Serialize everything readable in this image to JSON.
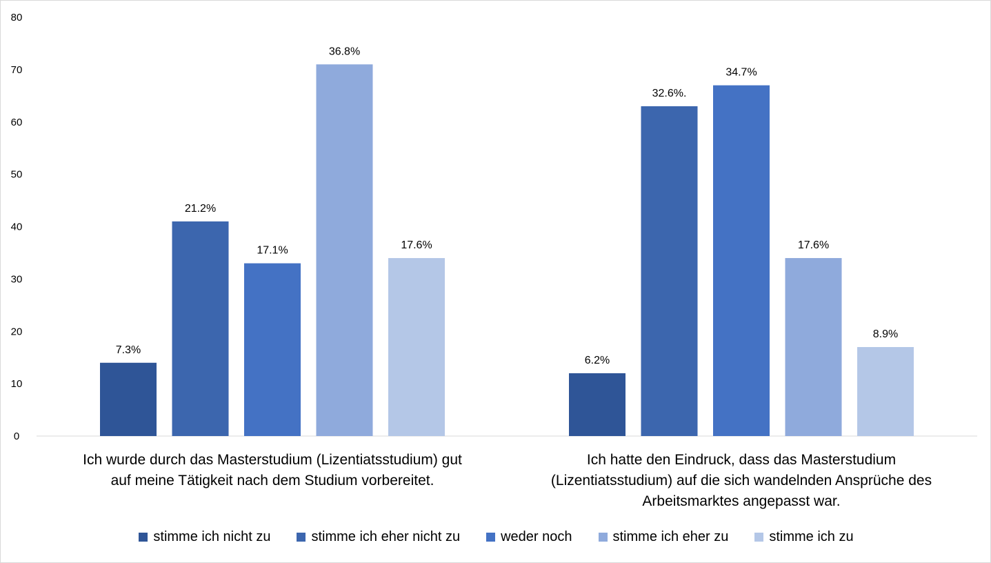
{
  "chart_data": {
    "type": "bar",
    "categories": [
      [
        "Ich wurde durch das Masterstudium (Lizentiatsstudium) gut",
        "auf meine Tätigkeit nach dem Studium vorbereitet."
      ],
      [
        "Ich hatte den Eindruck, dass das Masterstudium",
        "(Lizentiatsstudium) auf die sich wandelnden Ansprüche des",
        "Arbeitsmarktes angepasst war."
      ]
    ],
    "series": [
      {
        "name": "stimme ich nicht zu",
        "color": "#2f5597",
        "values": [
          14,
          12
        ],
        "labels": [
          "7.3%",
          "6.2%"
        ]
      },
      {
        "name": "stimme ich eher nicht zu",
        "color": "#3c66ae",
        "values": [
          41,
          63
        ],
        "labels": [
          "21.2%",
          "32.6%."
        ]
      },
      {
        "name": "weder noch",
        "color": "#4472c4",
        "values": [
          33,
          67
        ],
        "labels": [
          "17.1%",
          "34.7%"
        ]
      },
      {
        "name": "stimme ich eher zu",
        "color": "#8faadc",
        "values": [
          71,
          34
        ],
        "labels": [
          "36.8%",
          "17.6%"
        ]
      },
      {
        "name": "stimme ich zu",
        "color": "#b4c7e7",
        "values": [
          34,
          17
        ],
        "labels": [
          "17.6%",
          "8.9%"
        ]
      }
    ],
    "ylim": [
      0,
      80
    ],
    "yticks": [
      "0",
      "10",
      "20",
      "30",
      "40",
      "50",
      "60",
      "70",
      "80"
    ],
    "grid": false,
    "legend_position": "bottom",
    "title": "",
    "xlabel": "",
    "ylabel": ""
  }
}
